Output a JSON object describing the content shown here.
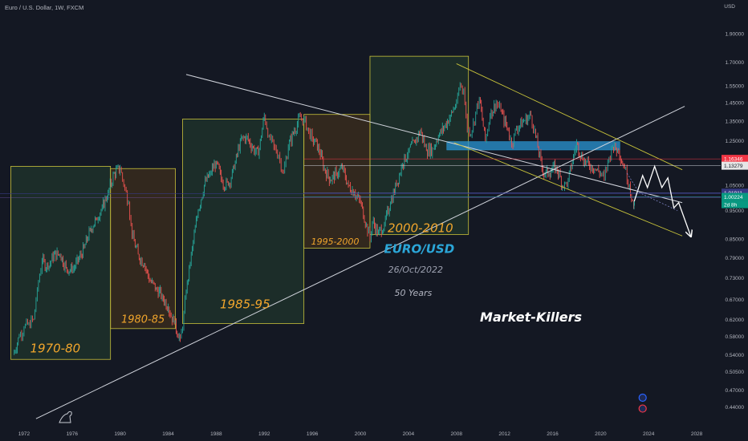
{
  "header": {
    "symbol_line": "Euro / U.S. Dollar, 1W, FXCM",
    "currency": "USD"
  },
  "chart_data": {
    "type": "line",
    "title": "Euro / U.S. Dollar, 1W, FXCM",
    "ylabel": "USD",
    "y_scale": "log",
    "xlim": [
      1970,
      2030
    ],
    "ylim": [
      0.415,
      2.05
    ],
    "y_ticks": [
      "1.90000",
      "1.70000",
      "1.55000",
      "1.45000",
      "1.35000",
      "1.25000",
      "1.15000",
      "1.05000",
      "0.95000",
      "0.85000",
      "0.79000",
      "0.73000",
      "0.67000",
      "0.62000",
      "0.58000",
      "0.54000",
      "0.50500",
      "0.47000",
      "0.44000"
    ],
    "x_ticks": [
      "1972",
      "1976",
      "1980",
      "1984",
      "1988",
      "1992",
      "1996",
      "2000",
      "2004",
      "2008",
      "2012",
      "2016",
      "2020",
      "2024",
      "2028"
    ],
    "series": [
      {
        "x": [
          1971.1,
          1971.6,
          1972.0,
          1972.4,
          1972.8,
          1973.1,
          1973.5,
          1974.0,
          1974.5,
          1975.0,
          1975.5,
          1976.0,
          1976.5,
          1977.0,
          1977.5,
          1978.0,
          1978.5,
          1979.0,
          1979.5,
          1980.0,
          1980.3,
          1980.7,
          1981.0,
          1981.5,
          1982.0,
          1982.5,
          1983.0,
          1983.5,
          1984.0,
          1984.5,
          1985.0,
          1985.2,
          1985.5,
          1986.0,
          1986.5,
          1987.0,
          1987.5,
          1988.0,
          1988.5,
          1989.0,
          1989.5,
          1990.0,
          1990.5,
          1991.0,
          1991.5,
          1992.0,
          1992.4,
          1992.8,
          1993.2,
          1993.6,
          1994.0,
          1994.5,
          1995.0,
          1995.3,
          1995.7,
          1996.0,
          1996.5,
          1997.0,
          1997.5,
          1998.0,
          1998.5,
          1999.0,
          1999.5,
          2000.0,
          2000.5,
          2000.8,
          2001.0,
          2001.5,
          2002.0,
          2002.5,
          2003.0,
          2003.5,
          2004.0,
          2004.5,
          2005.0,
          2005.5,
          2006.0,
          2006.5,
          2007.0,
          2007.5,
          2008.0,
          2008.3,
          2008.6,
          2008.9,
          2009.3,
          2009.6,
          2009.9,
          2010.4,
          2010.8,
          2011.3,
          2011.7,
          2012.3,
          2012.6,
          2013.0,
          2013.6,
          2014.2,
          2014.6,
          2015.2,
          2015.7,
          2016.3,
          2016.9,
          2017.3,
          2018.0,
          2018.5,
          2019.0,
          2019.5,
          2020.0,
          2020.3,
          2020.7,
          2021.0,
          2021.5,
          2022.0,
          2022.4,
          2022.75,
          2022.82
        ],
        "y": [
          0.54,
          0.58,
          0.6,
          0.61,
          0.62,
          0.7,
          0.78,
          0.76,
          0.8,
          0.8,
          0.76,
          0.75,
          0.78,
          0.82,
          0.88,
          0.92,
          0.96,
          1.02,
          1.1,
          1.12,
          1.05,
          0.98,
          0.86,
          0.8,
          0.77,
          0.72,
          0.7,
          0.68,
          0.65,
          0.61,
          0.575,
          0.6,
          0.69,
          0.82,
          0.95,
          1.05,
          1.1,
          1.15,
          1.06,
          1.05,
          1.12,
          1.25,
          1.27,
          1.22,
          1.18,
          1.38,
          1.27,
          1.22,
          1.18,
          1.1,
          1.22,
          1.3,
          1.37,
          1.36,
          1.3,
          1.26,
          1.22,
          1.12,
          1.07,
          1.1,
          1.12,
          1.05,
          1.02,
          0.98,
          0.9,
          0.85,
          0.91,
          0.87,
          0.9,
          0.98,
          1.05,
          1.14,
          1.2,
          1.24,
          1.3,
          1.2,
          1.21,
          1.27,
          1.32,
          1.38,
          1.45,
          1.56,
          1.52,
          1.3,
          1.3,
          1.4,
          1.48,
          1.25,
          1.38,
          1.45,
          1.4,
          1.3,
          1.23,
          1.31,
          1.35,
          1.38,
          1.27,
          1.1,
          1.1,
          1.13,
          1.04,
          1.07,
          1.24,
          1.16,
          1.14,
          1.12,
          1.1,
          1.08,
          1.17,
          1.22,
          1.2,
          1.12,
          1.05,
          0.96,
          0.985
        ]
      }
    ],
    "price_tags": [
      {
        "value": "1.16346",
        "y": 1.16346,
        "bg": "#f23645",
        "fg": "#ffffff"
      },
      {
        "value": "1.13279",
        "y": 1.13279,
        "bg": "#e6e6e6",
        "fg": "#131722"
      },
      {
        "value": "1.01911",
        "y": 1.01911,
        "bg": "#363a83",
        "fg": "#ffffff"
      },
      {
        "value": "1.00225",
        "y": 1.00225,
        "bg": "#7e57c2",
        "fg": "#ffffff"
      },
      {
        "value": "1.00224",
        "y": 1.00224,
        "bg": "#089981",
        "fg": "#ffffff",
        "sub": "2d 8h"
      }
    ],
    "period_boxes": [
      {
        "label": "1970-80",
        "x0": 1970.9,
        "x1": 1979.2,
        "y0": 0.53,
        "y1": 1.13,
        "fill": "rgba(76,175,80,0.14)",
        "lx": 1974.6,
        "ly": 0.545,
        "size": 15
      },
      {
        "label": "1980-85",
        "x0": 1979.2,
        "x1": 1984.6,
        "y0": 0.598,
        "y1": 1.12,
        "fill": "rgba(255,152,0,0.13)",
        "lx": 1981.9,
        "ly": 0.612,
        "size": 13
      },
      {
        "label": "1985-95",
        "x0": 1985.2,
        "x1": 1995.3,
        "y0": 0.61,
        "y1": 1.36,
        "fill": "rgba(76,175,80,0.14)",
        "lx": 1990.4,
        "ly": 0.648,
        "size": 15
      },
      {
        "label": "1995-2000",
        "x0": 1995.3,
        "x1": 2000.8,
        "y0": 0.82,
        "y1": 1.385,
        "fill": "rgba(255,152,0,0.13)",
        "lx": 1997.9,
        "ly": 0.832,
        "size": 11
      },
      {
        "label": "2000-2010",
        "x0": 2000.8,
        "x1": 2009.0,
        "y0": 0.865,
        "y1": 1.74,
        "fill": "rgba(76,175,80,0.14)",
        "lx": 2005.0,
        "ly": 0.873,
        "size": 15
      }
    ],
    "annotations": {
      "pair": "EURO/USD",
      "date": "26/Oct/2022",
      "years": "50 Years",
      "brand": "Market-Killers"
    },
    "colors": {
      "up": "#26a69a",
      "down": "#ef5350",
      "trendline": "#d1d4dc",
      "channel": "#c8c33a",
      "zone": "#2e9bd6",
      "projection": "#ffffff"
    }
  }
}
